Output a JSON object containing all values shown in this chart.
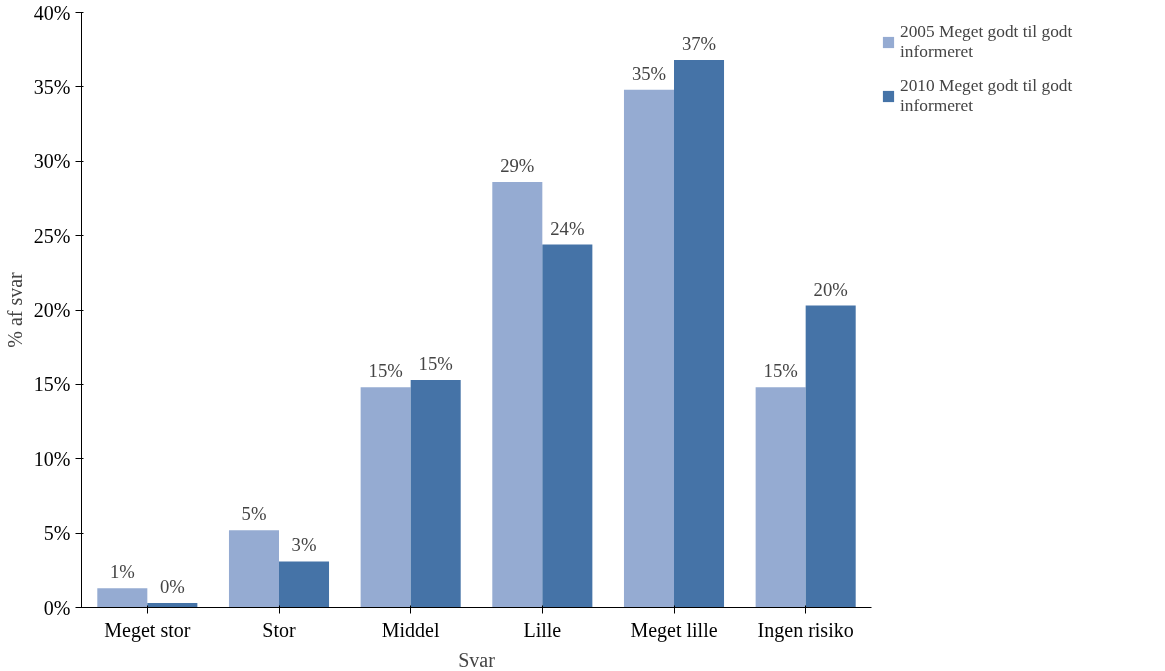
{
  "chart_data": {
    "type": "bar",
    "xlabel": "Svar",
    "ylabel": "% af svar",
    "categories": [
      "Meget stor",
      "Stor",
      "Middel",
      "Lille",
      "Meget lille",
      "Ingen risiko"
    ],
    "series": [
      {
        "name": "2005 Meget godt til godt informeret",
        "color": "#95abd2",
        "values": [
          1.3,
          5.2,
          14.8,
          28.6,
          34.8,
          14.8
        ],
        "value_labels": [
          "1%",
          "5%",
          "15%",
          "29%",
          "35%",
          "15%"
        ]
      },
      {
        "name": "2010 Meget godt til godt informeret",
        "color": "#4573a7",
        "values": [
          0.3,
          3.1,
          15.3,
          24.4,
          36.8,
          20.3
        ],
        "value_labels": [
          "0%",
          "3%",
          "15%",
          "24%",
          "37%",
          "20%"
        ]
      }
    ],
    "ylim": [
      0,
      40
    ],
    "yticks": [
      {
        "value": 0,
        "label": "0%"
      },
      {
        "value": 5,
        "label": "5%"
      },
      {
        "value": 10,
        "label": "10%"
      },
      {
        "value": 15,
        "label": "15%"
      },
      {
        "value": 20,
        "label": "20%"
      },
      {
        "value": 25,
        "label": "25%"
      },
      {
        "value": 30,
        "label": "30%"
      },
      {
        "value": 35,
        "label": "35%"
      },
      {
        "value": 40,
        "label": "40%"
      }
    ],
    "grid": false,
    "legend": "right"
  }
}
